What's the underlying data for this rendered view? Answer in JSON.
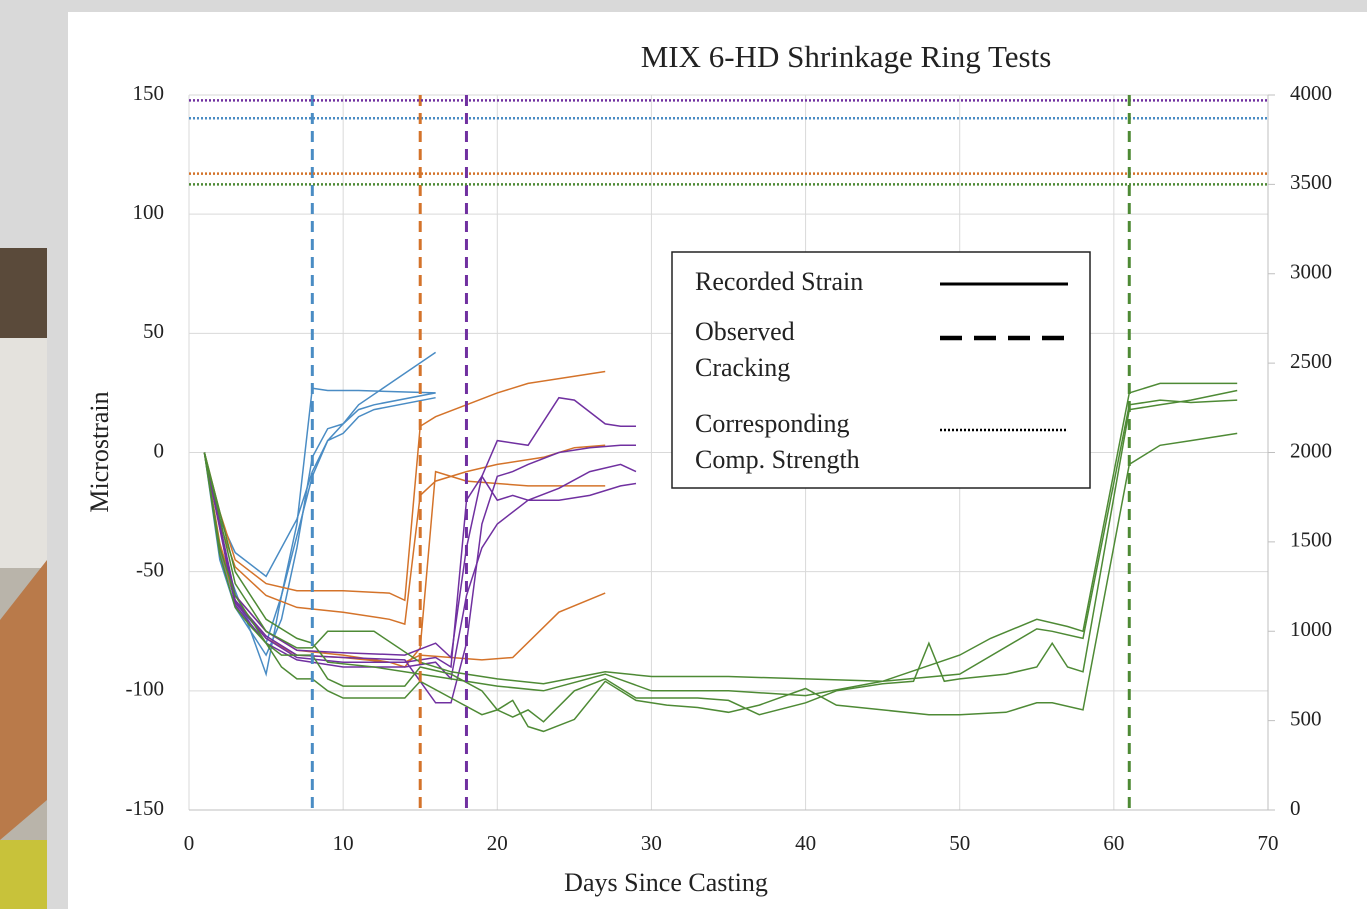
{
  "chart_data": {
    "type": "line",
    "title": "MIX 6-HD Shrinkage  Ring Tests",
    "x_label": "Days Since Casting",
    "y_label": "Microstrain",
    "xlim": [
      0,
      70
    ],
    "xticks": [
      0,
      10,
      20,
      30,
      40,
      50,
      60,
      70
    ],
    "ylim": [
      -150,
      150
    ],
    "yticks": [
      150,
      100,
      50,
      0,
      -50,
      -100,
      -150
    ],
    "y2lim": [
      0,
      4000
    ],
    "y2ticks": [
      4000,
      3500,
      3000,
      2500,
      2000,
      1500,
      1000,
      500,
      0
    ],
    "grid": true,
    "legend": {
      "position": "upper-center",
      "entries": [
        {
          "label": [
            "Recorded Strain"
          ],
          "style": "solid"
        },
        {
          "label": [
            "Observed",
            "Cracking"
          ],
          "style": "dashed"
        },
        {
          "label": [
            "Corresponding",
            "Comp. Strength"
          ],
          "style": "dotted"
        }
      ]
    },
    "groups": [
      {
        "color": "#4a8cc4",
        "cracking_day": 8,
        "compressive_strength": 3870,
        "lines": [
          {
            "x": [
              1,
              2,
              3,
              5,
              7,
              8,
              9,
              10,
              11,
              16
            ],
            "values": [
              0,
              -28,
              -42,
              -52,
              -28,
              -8,
              5,
              12,
              20,
              42
            ]
          },
          {
            "x": [
              1,
              2,
              3,
              4,
              5,
              6,
              7,
              8,
              9,
              10,
              11,
              16
            ],
            "values": [
              0,
              -40,
              -58,
              -75,
              -93,
              -60,
              -30,
              27,
              26,
              26,
              26,
              25
            ]
          },
          {
            "x": [
              1,
              2,
              3,
              4,
              5,
              6,
              7,
              8,
              9,
              10,
              11,
              12,
              16
            ],
            "values": [
              0,
              -42,
              -62,
              -72,
              -80,
              -60,
              -35,
              -10,
              5,
              8,
              15,
              18,
              23
            ]
          },
          {
            "x": [
              1,
              2,
              3,
              4,
              5,
              6,
              7,
              8,
              9,
              10,
              11,
              12,
              16
            ],
            "values": [
              0,
              -45,
              -65,
              -75,
              -85,
              -70,
              -40,
              -2,
              10,
              12,
              18,
              20,
              25
            ]
          }
        ]
      },
      {
        "color": "#d4732a",
        "cracking_day": 15,
        "compressive_strength": 3560,
        "lines": [
          {
            "x": [
              1,
              2,
              3,
              5,
              7,
              10,
              13,
              14,
              15,
              16,
              18,
              20,
              22,
              25,
              27
            ],
            "values": [
              0,
              -25,
              -45,
              -55,
              -58,
              -58,
              -59,
              -62,
              11,
              15,
              20,
              25,
              29,
              32,
              34
            ]
          },
          {
            "x": [
              1,
              2,
              3,
              5,
              7,
              10,
              13,
              14,
              15,
              16,
              18,
              20,
              23,
              25,
              27
            ],
            "values": [
              0,
              -30,
              -48,
              -60,
              -65,
              -67,
              -70,
              -72,
              -18,
              -12,
              -8,
              -5,
              -2,
              2,
              3
            ]
          },
          {
            "x": [
              1,
              2,
              3,
              5,
              7,
              10,
              13,
              14,
              15,
              16,
              18,
              20,
              22,
              25,
              27
            ],
            "values": [
              0,
              -38,
              -60,
              -75,
              -83,
              -85,
              -88,
              -90,
              -82,
              -8,
              -12,
              -13,
              -14,
              -14,
              -14
            ]
          },
          {
            "x": [
              1,
              2,
              3,
              5,
              7,
              10,
              13,
              14,
              15,
              17,
              19,
              21,
              24,
              27
            ],
            "values": [
              0,
              -40,
              -62,
              -78,
              -85,
              -86,
              -88,
              -88,
              -85,
              -86,
              -87,
              -86,
              -67,
              -59
            ]
          }
        ]
      },
      {
        "color": "#7030a0",
        "cracking_day": 18,
        "compressive_strength": 3970,
        "lines": [
          {
            "x": [
              1,
              3,
              5,
              7,
              10,
              14,
              16,
              17,
              18,
              19,
              20,
              22,
              24,
              25,
              27,
              28,
              29
            ],
            "values": [
              0,
              -60,
              -75,
              -83,
              -84,
              -85,
              -80,
              -86,
              -40,
              -10,
              5,
              3,
              23,
              22,
              12,
              11,
              11
            ]
          },
          {
            "x": [
              1,
              3,
              5,
              7,
              10,
              14,
              16,
              17,
              18,
              19,
              20,
              21,
              22,
              24,
              26,
              28,
              29
            ],
            "values": [
              0,
              -62,
              -77,
              -85,
              -86,
              -87,
              -105,
              -105,
              -80,
              -30,
              -10,
              -8,
              -5,
              0,
              2,
              3,
              3
            ]
          },
          {
            "x": [
              1,
              3,
              5,
              7,
              10,
              14,
              16,
              17,
              18,
              19,
              20,
              21,
              22,
              24,
              26,
              28,
              29
            ],
            "values": [
              0,
              -63,
              -78,
              -86,
              -88,
              -88,
              -86,
              -90,
              -20,
              -10,
              -20,
              -18,
              -20,
              -15,
              -8,
              -5,
              -8
            ]
          },
          {
            "x": [
              1,
              3,
              5,
              7,
              10,
              14,
              16,
              17,
              18,
              19,
              20,
              22,
              24,
              26,
              28,
              29
            ],
            "values": [
              0,
              -64,
              -80,
              -87,
              -90,
              -90,
              -88,
              -95,
              -60,
              -40,
              -30,
              -20,
              -20,
              -18,
              -14,
              -13
            ]
          }
        ]
      },
      {
        "color": "#4e8a35",
        "cracking_day": 61,
        "compressive_strength": 3500,
        "lines": [
          {
            "x": [
              1,
              2,
              3,
              4,
              5,
              6,
              7,
              8,
              9,
              10,
              14,
              15,
              17,
              19,
              20,
              21,
              22,
              23,
              25,
              27,
              29,
              31,
              33,
              35,
              37,
              40,
              42,
              45,
              48,
              50,
              53,
              55,
              56,
              58,
              61,
              63,
              65,
              68
            ],
            "values": [
              0,
              -40,
              -60,
              -70,
              -80,
              -90,
              -95,
              -95,
              -100,
              -103,
              -103,
              -96,
              -103,
              -110,
              -108,
              -104,
              -115,
              -117,
              -112,
              -96,
              -104,
              -106,
              -107,
              -109,
              -106,
              -99,
              -106,
              -108,
              -110,
              -110,
              -109,
              -105,
              -105,
              -108,
              -5,
              3,
              5,
              8
            ]
          },
          {
            "x": [
              1,
              2,
              3,
              4,
              5,
              6,
              7,
              8,
              9,
              10,
              14,
              15,
              17,
              19,
              20,
              21,
              22,
              23,
              25,
              27,
              29,
              31,
              33,
              35,
              37,
              40,
              42,
              45,
              47,
              48,
              49,
              50,
              53,
              55,
              56,
              57,
              58,
              61,
              63,
              65,
              68
            ],
            "values": [
              0,
              -43,
              -65,
              -73,
              -80,
              -85,
              -85,
              -85,
              -95,
              -98,
              -98,
              -90,
              -93,
              -100,
              -108,
              -111,
              -108,
              -113,
              -100,
              -95,
              -103,
              -103,
              -103,
              -104,
              -110,
              -105,
              -100,
              -97,
              -96,
              -80,
              -96,
              -95,
              -93,
              -90,
              -80,
              -90,
              -92,
              18,
              20,
              22,
              26
            ]
          },
          {
            "x": [
              1,
              3,
              5,
              7,
              8,
              9,
              12,
              15,
              17,
              20,
              23,
              27,
              30,
              35,
              40,
              45,
              50,
              52,
              55,
              57,
              58,
              61,
              63,
              65,
              68
            ],
            "values": [
              0,
              -55,
              -75,
              -82,
              -82,
              -75,
              -75,
              -88,
              -92,
              -95,
              -97,
              -92,
              -94,
              -94,
              -95,
              -96,
              -85,
              -78,
              -70,
              -73,
              -75,
              25,
              29,
              29,
              29
            ]
          },
          {
            "x": [
              1,
              3,
              5,
              7,
              8,
              9,
              12,
              15,
              17,
              20,
              23,
              27,
              30,
              35,
              40,
              45,
              50,
              55,
              56,
              58,
              61,
              63,
              65,
              68
            ],
            "values": [
              0,
              -50,
              -70,
              -78,
              -80,
              -88,
              -90,
              -93,
              -95,
              -98,
              -100,
              -93,
              -100,
              -100,
              -102,
              -96,
              -93,
              -74,
              -75,
              -78,
              20,
              22,
              21,
              22
            ]
          }
        ]
      }
    ]
  }
}
